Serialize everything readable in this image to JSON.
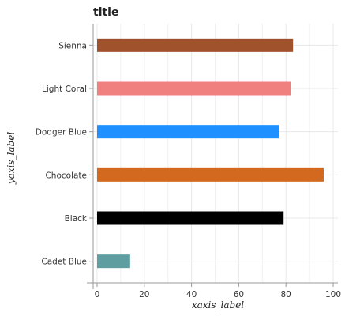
{
  "chart_data": {
    "type": "bar",
    "orientation": "horizontal",
    "title": "title",
    "xlabel": "xaxis_label",
    "ylabel": "yaxis_label",
    "categories": [
      "Cadet Blue",
      "Black",
      "Chocolate",
      "Dodger Blue",
      "Light Coral",
      "Sienna"
    ],
    "values": [
      14,
      79,
      96,
      77,
      82,
      83
    ],
    "colors": [
      "#5f9ea0",
      "#000000",
      "#d2691e",
      "#1e90ff",
      "#f08080",
      "#a0522d"
    ],
    "xlim": [
      0,
      100
    ],
    "xticks": [
      0,
      20,
      40,
      60,
      80,
      100
    ],
    "xtick_labels": [
      "0",
      "20",
      "40",
      "60",
      "80",
      "100"
    ],
    "grid": true,
    "legend": "none"
  }
}
